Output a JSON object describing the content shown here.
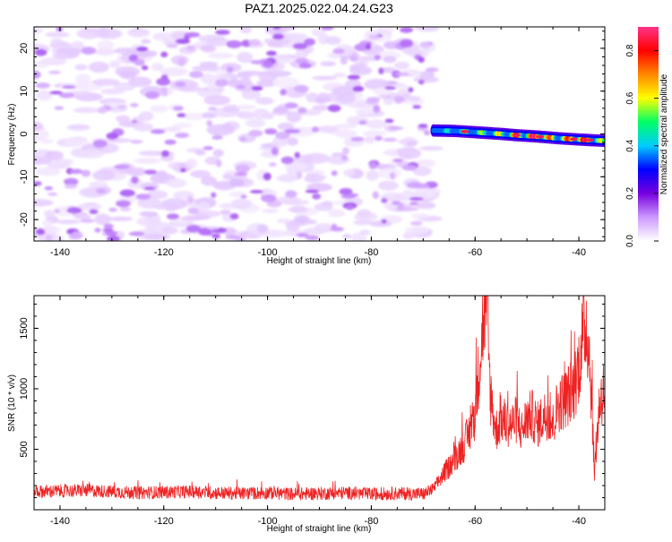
{
  "chart_data": [
    {
      "type": "heatmap",
      "title": "PAZ1.2025.022.04.24.G23",
      "xlabel": "Height of straight line (km)",
      "ylabel": "Frequency (Hz)",
      "xlim": [
        -145,
        -35
      ],
      "ylim": [
        -25,
        25
      ],
      "x_ticks": [
        "-140",
        "-120",
        "-100",
        "-80",
        "-60",
        "-40"
      ],
      "y_ticks": [
        "20",
        "10",
        "0",
        "-10",
        "-20"
      ],
      "colorbar": {
        "label": "Normalized spectral amplitude",
        "range": [
          0,
          0.9
        ],
        "ticks": [
          "0.0",
          "0.2",
          "0.4",
          "0.6",
          "0.8"
        ],
        "colormap": [
          "#ffffff",
          "#cc99ff",
          "#7700dd",
          "#0000ff",
          "#00ccff",
          "#00ff66",
          "#ffff00",
          "#ff8800",
          "#ff0000",
          "#ff3388"
        ]
      },
      "noise_region": {
        "x_range": [
          -145,
          -68
        ],
        "frequency_range": [
          -25,
          25
        ],
        "amplitude_level": [
          0.02,
          0.12
        ]
      },
      "signal_track": [
        {
          "x": -68,
          "freq": 0.8,
          "amp": 0.35
        },
        {
          "x": -64,
          "freq": 0.7,
          "amp": 0.45
        },
        {
          "x": -60,
          "freq": 0.4,
          "amp": 0.5
        },
        {
          "x": -55,
          "freq": 0.0,
          "amp": 0.6
        },
        {
          "x": -52,
          "freq": -0.3,
          "amp": 0.75
        },
        {
          "x": -48,
          "freq": -0.6,
          "amp": 0.85
        },
        {
          "x": -44,
          "freq": -1.0,
          "amp": 0.6
        },
        {
          "x": -40,
          "freq": -1.3,
          "amp": 0.85
        },
        {
          "x": -37,
          "freq": -1.5,
          "amp": 0.7
        },
        {
          "x": -35,
          "freq": -1.6,
          "amp": 0.5
        }
      ]
    },
    {
      "type": "line",
      "xlabel": "Height of straight line (km)",
      "ylabel": "SNR (10 * v/v)",
      "xlim": [
        -145,
        -35
      ],
      "ylim": [
        0,
        1770
      ],
      "x_ticks": [
        "-140",
        "-120",
        "-100",
        "-80",
        "-60",
        "-40"
      ],
      "y_ticks": [
        "500",
        "1000",
        "1500"
      ],
      "series": [
        {
          "color": "#ee2222",
          "x": [
            -145,
            -140,
            -135,
            -130,
            -125,
            -120,
            -115,
            -110,
            -105,
            -100,
            -95,
            -90,
            -85,
            -80,
            -75,
            -70,
            -68,
            -66,
            -64,
            -62,
            -61,
            -60,
            -59,
            -58,
            -57,
            -56,
            -55,
            -54,
            -53,
            -52,
            -51,
            -50,
            -49,
            -48,
            -47,
            -46,
            -45,
            -44,
            -43,
            -42,
            -41,
            -40,
            -39,
            -38.5,
            -38,
            -37.5,
            -37,
            -36,
            -35
          ],
          "y": [
            150,
            155,
            160,
            150,
            140,
            145,
            150,
            140,
            135,
            140,
            130,
            135,
            140,
            130,
            135,
            130,
            170,
            300,
            420,
            550,
            650,
            800,
            1300,
            1760,
            950,
            650,
            750,
            720,
            700,
            750,
            650,
            760,
            780,
            700,
            760,
            800,
            700,
            880,
            900,
            950,
            1000,
            1200,
            1500,
            1550,
            1300,
            900,
            300,
            900,
            1000
          ]
        }
      ]
    }
  ]
}
